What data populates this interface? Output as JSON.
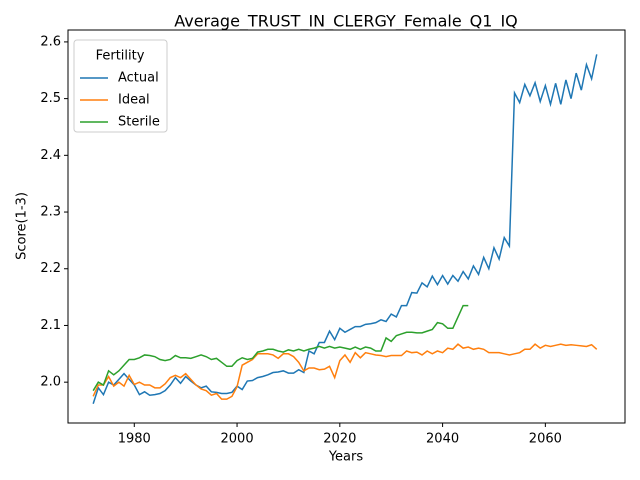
{
  "chart_data": {
    "type": "line",
    "title": "Average_TRUST_IN_CLERGY_Female_Q1_IQ",
    "x_label": "Years",
    "y_label": "Score(1-3)",
    "x": [
      1972,
      1973,
      1974,
      1975,
      1976,
      1977,
      1978,
      1979,
      1980,
      1981,
      1982,
      1983,
      1984,
      1985,
      1986,
      1987,
      1988,
      1989,
      1990,
      1991,
      1992,
      1993,
      1994,
      1995,
      1996,
      1997,
      1998,
      1999,
      2000,
      2001,
      2002,
      2003,
      2004,
      2005,
      2006,
      2007,
      2008,
      2009,
      2010,
      2011,
      2012,
      2013,
      2014,
      2015,
      2016,
      2017,
      2018,
      2019,
      2020,
      2021,
      2022,
      2023,
      2024,
      2025,
      2026,
      2027,
      2028,
      2029,
      2030,
      2031,
      2032,
      2033,
      2034,
      2035,
      2036,
      2037,
      2038,
      2039,
      2040,
      2041,
      2042,
      2043,
      2044,
      2045,
      2046,
      2047,
      2048,
      2049,
      2050,
      2051,
      2052,
      2053,
      2054,
      2055,
      2056,
      2057,
      2058,
      2059,
      2060,
      2061,
      2062,
      2063,
      2064,
      2065,
      2066,
      2067,
      2068,
      2069,
      2070
    ],
    "series": [
      {
        "name": "Actual",
        "color": "#1f77b4",
        "values": [
          1.962,
          1.99,
          1.978,
          2.0,
          1.995,
          2.005,
          2.015,
          2.005,
          1.995,
          1.978,
          1.983,
          1.977,
          1.978,
          1.98,
          1.985,
          1.995,
          2.008,
          1.998,
          2.01,
          2.002,
          1.995,
          1.99,
          1.993,
          1.983,
          1.982,
          1.98,
          1.98,
          1.982,
          1.993,
          1.987,
          2.002,
          2.003,
          2.008,
          2.01,
          2.013,
          2.017,
          2.018,
          2.02,
          2.016,
          2.016,
          2.022,
          2.017,
          2.055,
          2.05,
          2.07,
          2.07,
          2.09,
          2.075,
          2.095,
          2.088,
          2.093,
          2.098,
          2.098,
          2.102,
          2.103,
          2.105,
          2.11,
          2.107,
          2.12,
          2.115,
          2.135,
          2.135,
          2.158,
          2.157,
          2.175,
          2.168,
          2.187,
          2.172,
          2.188,
          2.173,
          2.188,
          2.178,
          2.195,
          2.182,
          2.205,
          2.19,
          2.22,
          2.2,
          2.237,
          2.217,
          2.255,
          2.24,
          2.51,
          2.493,
          2.525,
          2.505,
          2.528,
          2.495,
          2.523,
          2.49,
          2.527,
          2.49,
          2.533,
          2.5,
          2.545,
          2.515,
          2.56,
          2.535,
          2.578
        ]
      },
      {
        "name": "Ideal",
        "color": "#ff7f0e",
        "values": [
          1.975,
          1.995,
          1.995,
          2.01,
          1.993,
          2.0,
          1.993,
          2.012,
          1.996,
          2.0,
          1.995,
          1.995,
          1.99,
          1.99,
          1.997,
          2.008,
          2.012,
          2.008,
          2.015,
          2.005,
          1.995,
          1.988,
          1.985,
          1.977,
          1.98,
          1.97,
          1.97,
          1.975,
          1.992,
          2.03,
          2.035,
          2.04,
          2.05,
          2.05,
          2.05,
          2.048,
          2.042,
          2.05,
          2.05,
          2.045,
          2.035,
          2.02,
          2.025,
          2.025,
          2.022,
          2.023,
          2.028,
          2.008,
          2.038,
          2.048,
          2.035,
          2.052,
          2.043,
          2.052,
          2.05,
          2.048,
          2.047,
          2.045,
          2.047,
          2.047,
          2.047,
          2.055,
          2.052,
          2.053,
          2.048,
          2.055,
          2.05,
          2.055,
          2.052,
          2.06,
          2.058,
          2.067,
          2.06,
          2.062,
          2.058,
          2.06,
          2.058,
          2.052,
          2.052,
          2.052,
          2.05,
          2.048,
          2.05,
          2.052,
          2.058,
          2.058,
          2.067,
          2.06,
          2.065,
          2.063,
          2.065,
          2.067,
          2.065,
          2.066,
          2.065,
          2.064,
          2.063,
          2.066,
          2.058
        ]
      },
      {
        "name": "Sterile",
        "color": "#2ca02c",
        "values": [
          1.985,
          2.0,
          1.995,
          2.02,
          2.013,
          2.02,
          2.03,
          2.04,
          2.04,
          2.043,
          2.048,
          2.047,
          2.045,
          2.04,
          2.038,
          2.04,
          2.047,
          2.043,
          2.043,
          2.042,
          2.045,
          2.048,
          2.045,
          2.04,
          2.042,
          2.035,
          2.028,
          2.028,
          2.038,
          2.043,
          2.04,
          2.042,
          2.053,
          2.055,
          2.058,
          2.058,
          2.055,
          2.053,
          2.057,
          2.055,
          2.058,
          2.055,
          2.058,
          2.06,
          2.063,
          2.06,
          2.063,
          2.06,
          2.062,
          2.06,
          2.058,
          2.062,
          2.058,
          2.062,
          2.06,
          2.055,
          2.055,
          2.078,
          2.072,
          2.082,
          2.085,
          2.088,
          2.088,
          2.087,
          2.087,
          2.09,
          2.093,
          2.105,
          2.103,
          2.095,
          2.095,
          2.115,
          2.135,
          2.135,
          null,
          null,
          null,
          null,
          null,
          null,
          null,
          null,
          null,
          null,
          null,
          null,
          null,
          null,
          null,
          null,
          null,
          null,
          null,
          null,
          null,
          null,
          null,
          null,
          null
        ]
      }
    ],
    "legend_title": "Fertility",
    "legend": "upper left",
    "xlim": [
      1967.1,
      2075.5
    ],
    "xticks": [
      1980,
      2000,
      2020,
      2040,
      2060
    ],
    "ylim": [
      1.928,
      2.621
    ],
    "yticks": [
      {
        "value": 2,
        "label": "2.0"
      },
      2.1,
      2.2,
      2.3,
      2.4,
      2.5,
      2.6
    ]
  }
}
